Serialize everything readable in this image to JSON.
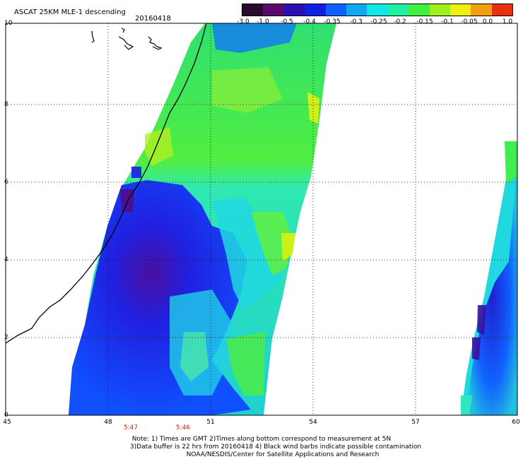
{
  "header": {
    "product": "ASCAT 25KM MLE-1 descending",
    "date": "20160418"
  },
  "colorbar": {
    "labels": [
      "-3.0",
      "-1.0",
      "-0.5",
      "-0.4",
      "-0.35",
      "-0.3",
      "-0.25",
      "-0.2",
      "-0.15",
      "-0.1",
      "-0.05",
      "0.0",
      "1.0"
    ],
    "colors": [
      "#2a0a2a",
      "#5a0a6a",
      "#2a10b0",
      "#1020e0",
      "#1060ff",
      "#10a8f0",
      "#10e8e8",
      "#20f0a0",
      "#40f040",
      "#a0f020",
      "#f0f010",
      "#f0a010",
      "#e83010"
    ]
  },
  "axes": {
    "lon_ticks": [
      "45",
      "48",
      "51",
      "54",
      "57",
      "60"
    ],
    "lat_ticks": [
      "0",
      "2",
      "4",
      "6",
      "8",
      "10"
    ],
    "lon_range": [
      45,
      60
    ],
    "lat_range": [
      0,
      10
    ],
    "grid": true
  },
  "times": [
    "5:47",
    "5:46"
  ],
  "notes": [
    "Note: 1) Times are GMT 2)Times along bottom correspond to measurement at 5N",
    "3)Data buffer is 22 hrs from 20160418 4) Black wind barbs indicate possible contamination",
    "NOAA/NESDIS/Center for Satellite Applications and Research"
  ]
}
